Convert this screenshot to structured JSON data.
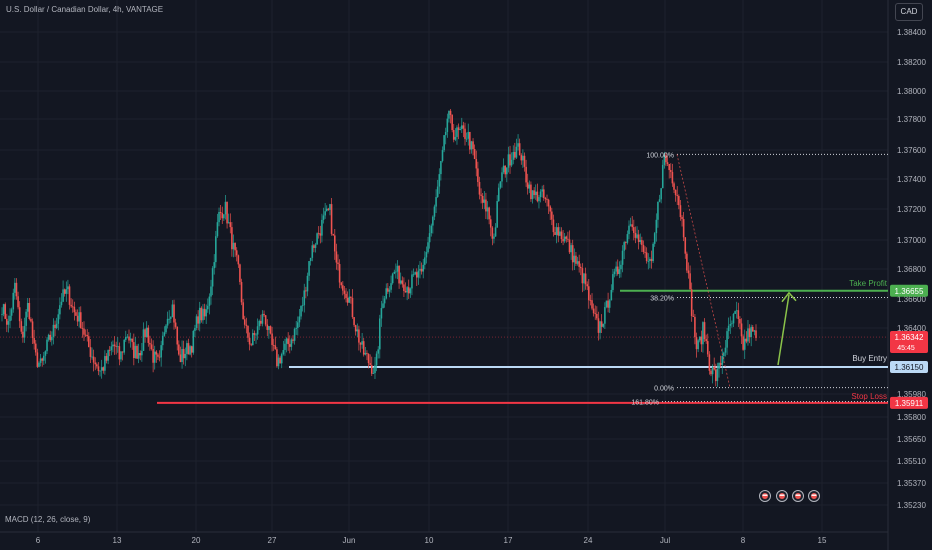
{
  "header": {
    "symbol_title": "U.S. Dollar / Canadian Dollar, 4h, VANTAGE",
    "currency": "CAD"
  },
  "indicator": {
    "label": "MACD (12, 26, close, 9)"
  },
  "colors": {
    "background": "#131722",
    "grid": "#1e222d",
    "axis_text": "#b2b5be",
    "up": "#26a69a",
    "down": "#ef5350",
    "take_profit": "#4caf50",
    "buy_entry": "#bbd9f5",
    "stop_loss": "#f23645",
    "current_price": "#f23645"
  },
  "chart_data": {
    "type": "candlestick",
    "title": "U.S. Dollar / Canadian Dollar, 4h, VANTAGE",
    "y_axis": {
      "ticks": [
        1.384,
        1.382,
        1.38,
        1.378,
        1.376,
        1.374,
        1.372,
        1.37,
        1.368,
        1.366,
        1.364,
        1.3615,
        1.3598,
        1.358,
        1.3565,
        1.3551,
        1.3537,
        1.3523
      ],
      "tick_labels": [
        "1.38400",
        "1.38200",
        "1.38000",
        "1.37800",
        "1.37600",
        "1.37400",
        "1.37200",
        "1.37000",
        "1.36800",
        "1.36600",
        "1.36400",
        "1.36150",
        "1.35980",
        "1.35800",
        "1.35650",
        "1.35510",
        "1.35370",
        "1.35230"
      ]
    },
    "x_axis": {
      "tick_labels": [
        "6",
        "13",
        "20",
        "27",
        "Jun",
        "10",
        "17",
        "24",
        "Jul",
        "8",
        "15"
      ]
    },
    "price_path": [
      1.3655,
      1.3642,
      1.3669,
      1.3632,
      1.3657,
      1.3622,
      1.3615,
      1.363,
      1.364,
      1.366,
      1.3665,
      1.3651,
      1.3645,
      1.363,
      1.362,
      1.3612,
      1.362,
      1.363,
      1.362,
      1.3638,
      1.3625,
      1.3625,
      1.364,
      1.3622,
      1.3616,
      1.3647,
      1.3655,
      1.362,
      1.3625,
      1.363,
      1.365,
      1.3647,
      1.3675,
      1.3715,
      1.3722,
      1.37,
      1.368,
      1.364,
      1.363,
      1.364,
      1.365,
      1.363,
      1.3618,
      1.3626,
      1.3632,
      1.3641,
      1.366,
      1.369,
      1.3702,
      1.3712,
      1.3719,
      1.3682,
      1.367,
      1.366,
      1.364,
      1.3625,
      1.3618,
      1.3612,
      1.366,
      1.367,
      1.3679,
      1.3672,
      1.3668,
      1.3675,
      1.3675,
      1.37,
      1.372,
      1.375,
      1.3783,
      1.377,
      1.3771,
      1.377,
      1.3755,
      1.3725,
      1.372,
      1.37,
      1.374,
      1.375,
      1.376,
      1.376,
      1.374,
      1.3728,
      1.373,
      1.3725,
      1.371,
      1.3705,
      1.37,
      1.369,
      1.368,
      1.367,
      1.365,
      1.364,
      1.365,
      1.367,
      1.368,
      1.37,
      1.3715,
      1.37,
      1.369,
      1.368,
      1.372,
      1.3755,
      1.3745,
      1.373,
      1.3705,
      1.366,
      1.3625,
      1.364,
      1.3615,
      1.3608,
      1.3625,
      1.364,
      1.365,
      1.3628,
      1.3638,
      1.3634
    ],
    "annotations": {
      "take_profit": {
        "label": "Take Profit",
        "price": 1.36655,
        "price_label": "1.36655"
      },
      "buy_entry": {
        "label": "Buy Entry",
        "price": 1.3615,
        "price_label": "1.36150"
      },
      "stop_loss": {
        "label": "Stop Loss",
        "price": 1.35911,
        "price_label": "1.35911"
      },
      "current_price": {
        "price": 1.36342,
        "price_label": "1.36342",
        "countdown": "45:45"
      },
      "fibonacci": [
        {
          "label": "100.00%",
          "price": 1.3757
        },
        {
          "label": "38.20%",
          "price": 1.3661
        },
        {
          "label": "0.00%",
          "price": 1.3602
        },
        {
          "label": "161.80%",
          "price": 1.3592
        }
      ]
    },
    "grid": true,
    "legend": "none"
  }
}
